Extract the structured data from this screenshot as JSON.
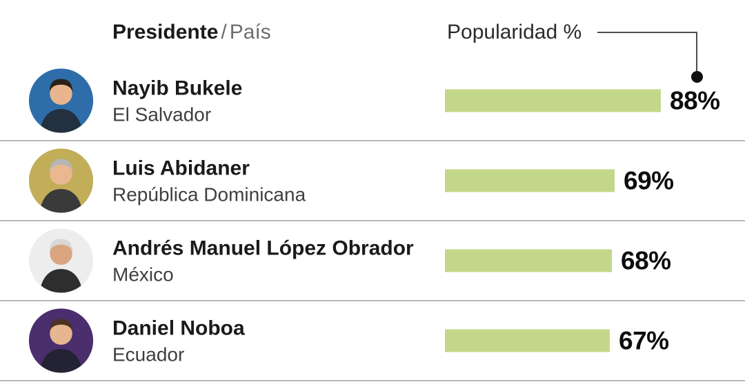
{
  "header": {
    "presidente": "Presidente",
    "separator": "/",
    "pais": "País",
    "popularidad": "Popularidad %"
  },
  "chart_data": {
    "type": "bar",
    "orientation": "horizontal",
    "title": "Popularidad %",
    "categories": [
      "Nayib Bukele",
      "Luis Abidaner",
      "Andrés Manuel López Obrador",
      "Daniel Noboa"
    ],
    "countries": [
      "El Salvador",
      "República Dominicana",
      "México",
      "Ecuador"
    ],
    "values": [
      88,
      69,
      68,
      67
    ],
    "value_labels": [
      "88%",
      "69%",
      "68%",
      "67%"
    ],
    "xlim": [
      0,
      100
    ],
    "bar_color": "#c3d78a",
    "grid": false,
    "legend": "none"
  },
  "colors": {
    "divider": "#b9b9b9",
    "connector": "#4d4d4d",
    "value_text": "#0d0d0d"
  },
  "avatars": [
    {
      "bg": "#2e6daa",
      "skin": "#e9b58e",
      "hair": "#2b2119",
      "suit": "#22303f"
    },
    {
      "bg": "#c2ad58",
      "skin": "#eab890",
      "hair": "#b5b5b5",
      "suit": "#3a3a3a"
    },
    {
      "bg": "#ededed",
      "skin": "#d9a57f",
      "hair": "#d8d8d8",
      "suit": "#2e2e2e"
    },
    {
      "bg": "#4b2e6e",
      "skin": "#e6b691",
      "hair": "#4a3421",
      "suit": "#232334"
    }
  ]
}
